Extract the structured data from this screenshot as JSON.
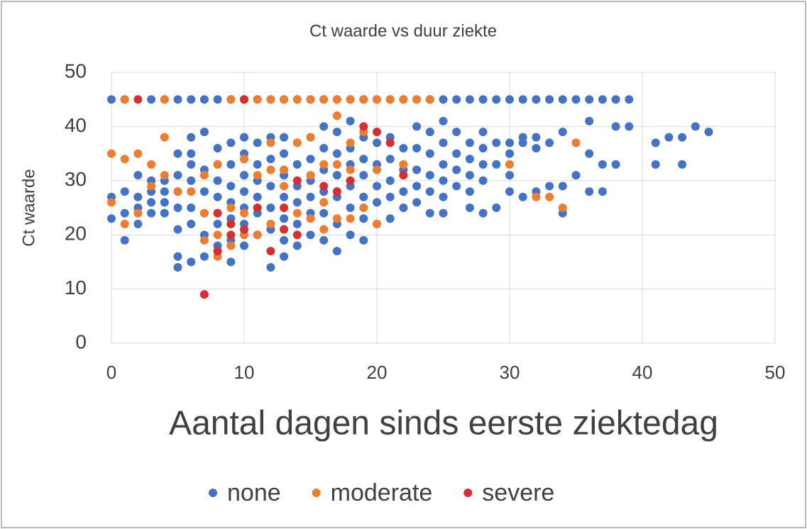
{
  "chart_data": {
    "type": "scatter",
    "title": "Ct waarde vs duur ziekte",
    "x_label": "Aantal dagen sinds eerste ziektedag",
    "y_label": "Ct waarde",
    "xlim": [
      0,
      50
    ],
    "xticks": [
      0,
      10,
      20,
      30,
      40,
      50
    ],
    "ylim": [
      0,
      50
    ],
    "yticks": [
      0,
      10,
      20,
      30,
      40,
      50
    ],
    "grid": true,
    "legend": "bottom",
    "series": [
      {
        "name": "none",
        "color": "#4472c4",
        "x": [
          0,
          1,
          3,
          4,
          5,
          6,
          7,
          8,
          9,
          10,
          11,
          12,
          13,
          14,
          15,
          16,
          17,
          18,
          19,
          20,
          21,
          22,
          23,
          24,
          25,
          26,
          27,
          28,
          29,
          30,
          31,
          32,
          33,
          34,
          35,
          36,
          37,
          38,
          39,
          0,
          0,
          1,
          1,
          1,
          2,
          2,
          2,
          2,
          3,
          3,
          3,
          3,
          4,
          4,
          4,
          4,
          5,
          5,
          5,
          5,
          5,
          5,
          5,
          6,
          6,
          6,
          6,
          6,
          6,
          6,
          7,
          7,
          7,
          7,
          7,
          7,
          8,
          8,
          8,
          8,
          8,
          8,
          9,
          9,
          9,
          9,
          9,
          9,
          9,
          10,
          10,
          10,
          10,
          10,
          10,
          10,
          11,
          11,
          11,
          11,
          11,
          11,
          12,
          12,
          12,
          12,
          12,
          12,
          13,
          13,
          13,
          13,
          13,
          13,
          13,
          14,
          14,
          14,
          14,
          14,
          14,
          15,
          15,
          15,
          15,
          15,
          15,
          16,
          16,
          16,
          16,
          16,
          16,
          17,
          17,
          17,
          17,
          17,
          17,
          18,
          18,
          18,
          18,
          18,
          18,
          19,
          19,
          19,
          19,
          19,
          19,
          20,
          20,
          20,
          20,
          20,
          21,
          21,
          21,
          21,
          21,
          22,
          22,
          22,
          22,
          23,
          23,
          23,
          23,
          23,
          24,
          24,
          24,
          24,
          24,
          25,
          25,
          25,
          25,
          25,
          25,
          26,
          26,
          26,
          26,
          27,
          27,
          27,
          27,
          27,
          28,
          28,
          28,
          28,
          28,
          29,
          29,
          29,
          30,
          30,
          30,
          30,
          31,
          31,
          31,
          32,
          32,
          32,
          33,
          33,
          34,
          34,
          34,
          35,
          36,
          36,
          36,
          37,
          37,
          38,
          38,
          39,
          41,
          41,
          42,
          43,
          43,
          44,
          45
        ],
        "values": [
          45,
          45,
          45,
          45,
          45,
          45,
          45,
          45,
          45,
          45,
          45,
          45,
          45,
          45,
          45,
          45,
          45,
          45,
          45,
          45,
          45,
          45,
          45,
          45,
          45,
          45,
          45,
          45,
          45,
          45,
          45,
          45,
          45,
          45,
          45,
          45,
          45,
          45,
          45,
          27,
          23,
          28,
          24,
          19,
          31,
          27,
          25,
          22,
          30,
          28,
          26,
          24,
          30,
          28,
          26,
          24,
          35,
          31,
          28,
          25,
          21,
          16,
          14,
          38,
          35,
          33,
          30,
          25,
          22,
          15,
          39,
          32,
          28,
          24,
          20,
          16,
          36,
          33,
          30,
          27,
          22,
          18,
          37,
          33,
          29,
          26,
          23,
          19,
          15,
          38,
          35,
          31,
          28,
          25,
          22,
          18,
          37,
          33,
          30,
          27,
          24,
          20,
          38,
          34,
          29,
          25,
          21,
          14,
          38,
          35,
          31,
          27,
          23,
          19,
          16,
          37,
          33,
          29,
          26,
          22,
          18,
          38,
          34,
          30,
          27,
          24,
          20,
          40,
          36,
          32,
          28,
          24,
          19,
          39,
          35,
          31,
          27,
          22,
          17,
          41,
          36,
          33,
          29,
          25,
          20,
          38,
          34,
          31,
          27,
          23,
          19,
          37,
          33,
          29,
          26,
          22,
          38,
          34,
          30,
          27,
          23,
          36,
          32,
          28,
          25,
          40,
          36,
          32,
          29,
          26,
          39,
          35,
          31,
          28,
          24,
          41,
          37,
          33,
          30,
          27,
          24,
          39,
          35,
          32,
          29,
          37,
          34,
          31,
          28,
          25,
          39,
          36,
          33,
          30,
          24,
          37,
          33,
          25,
          37,
          35,
          31,
          28,
          38,
          37,
          27,
          38,
          36,
          28,
          37,
          29,
          39,
          29,
          24,
          31,
          41,
          35,
          28,
          33,
          28,
          40,
          33,
          40,
          37,
          33,
          38,
          38,
          33,
          40,
          39
        ]
      },
      {
        "name": "moderate",
        "color": "#ed7d31",
        "x": [
          0,
          0,
          1,
          1,
          1,
          2,
          2,
          3,
          3,
          4,
          4,
          4,
          5,
          6,
          7,
          7,
          7,
          8,
          8,
          8,
          9,
          9,
          9,
          10,
          10,
          10,
          10,
          11,
          11,
          11,
          12,
          12,
          12,
          12,
          13,
          13,
          13,
          14,
          14,
          14,
          15,
          15,
          15,
          15,
          16,
          16,
          16,
          16,
          17,
          17,
          17,
          17,
          18,
          18,
          18,
          18,
          19,
          19,
          19,
          20,
          20,
          20,
          21,
          22,
          22,
          23,
          24,
          30,
          32,
          33,
          34,
          35
        ],
        "values": [
          35,
          26,
          45,
          34,
          22,
          35,
          24,
          33,
          29,
          45,
          38,
          31,
          28,
          28,
          31,
          24,
          19,
          33,
          20,
          16,
          45,
          25,
          18,
          45,
          34,
          24,
          20,
          45,
          31,
          20,
          45,
          37,
          32,
          22,
          45,
          32,
          29,
          45,
          37,
          24,
          45,
          38,
          31,
          23,
          45,
          33,
          26,
          21,
          45,
          42,
          33,
          23,
          45,
          37,
          32,
          23,
          45,
          39,
          25,
          45,
          32,
          22,
          45,
          45,
          33,
          45,
          45,
          33,
          27,
          27,
          25,
          37
        ]
      },
      {
        "name": "severe",
        "color": "#d62f2f",
        "x": [
          2,
          7,
          8,
          8,
          9,
          9,
          10,
          10,
          11,
          12,
          13,
          13,
          14,
          14,
          16,
          17,
          18,
          19,
          20,
          21,
          22
        ],
        "values": [
          45,
          9,
          24,
          17,
          22,
          20,
          45,
          21,
          25,
          17,
          25,
          21,
          30,
          20,
          29,
          28,
          30,
          40,
          39,
          37,
          31
        ]
      }
    ]
  }
}
